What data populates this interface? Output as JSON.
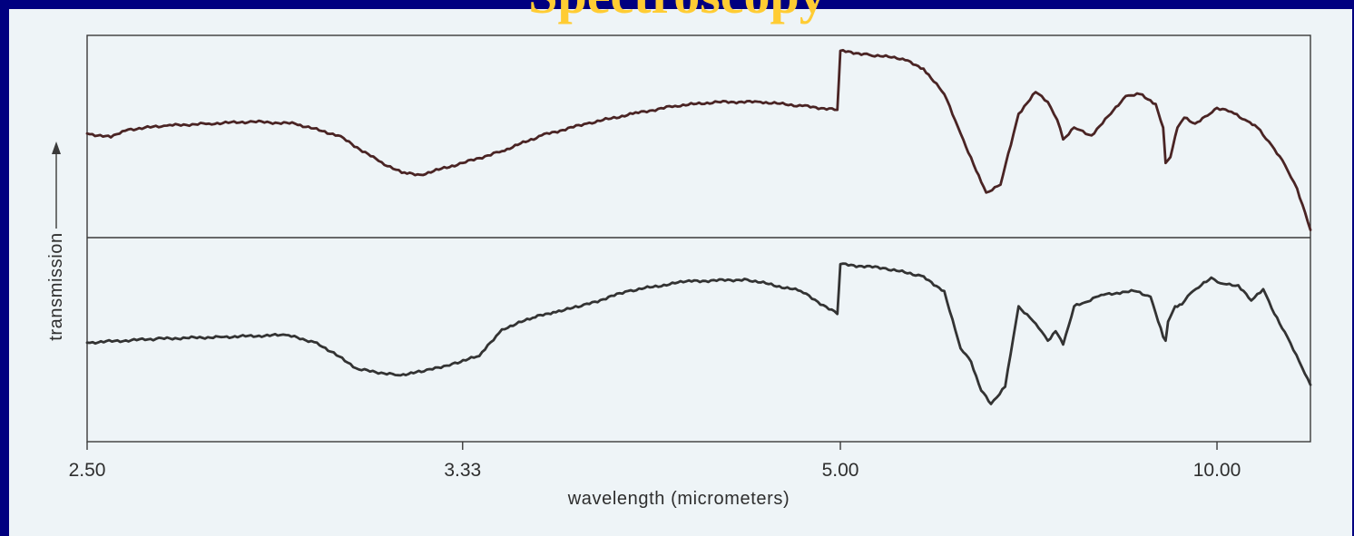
{
  "slide": {
    "title": "Spectroscopy"
  },
  "colors": {
    "slide_background": "#000080",
    "panel_background": "#eef4f7",
    "title_color": "#ffcc33",
    "trace_top": "#4a2424",
    "trace_bottom": "#333333",
    "frame": "#3a3a3a"
  },
  "chart_data": {
    "type": "line",
    "title": "",
    "xlabel": "wavelength (micrometers)",
    "ylabel": "transmission",
    "x_tick_labels": [
      "2.50",
      "3.33",
      "5.00",
      "10.00"
    ],
    "x_ticks": [
      2.5,
      3.33,
      5.0,
      10.0
    ],
    "x_scale": "wavenumber (reciprocal of wavelength)",
    "xlim": [
      2.5,
      13.3
    ],
    "ylim": [
      0,
      1
    ],
    "grid": false,
    "legend": "none",
    "note": "two stacked transmission spectra separated by a horizontal divider; y values are relative transmission (0 = bottom of its panel, 1 = top)",
    "series": [
      {
        "panel": "top",
        "x": [
          2.5,
          2.54,
          2.57,
          2.64,
          2.72,
          2.81,
          2.9,
          3.0,
          3.1,
          3.16,
          3.21,
          3.33,
          3.45,
          3.58,
          3.74,
          3.92,
          4.1,
          4.3,
          4.52,
          4.76,
          4.98,
          5.0,
          5.2,
          5.45,
          5.62,
          5.8,
          5.95,
          6.1,
          6.2,
          6.35,
          6.55,
          6.75,
          6.9,
          7.02,
          7.1,
          7.25,
          7.5,
          7.8,
          8.05,
          8.3,
          8.6,
          8.75,
          8.8,
          8.9,
          9.05,
          9.2,
          9.45,
          9.75,
          10.0,
          10.4,
          10.8,
          11.2,
          11.7,
          12.2,
          12.7,
          13.3
        ],
        "y": [
          0.52,
          0.5,
          0.54,
          0.56,
          0.57,
          0.58,
          0.57,
          0.51,
          0.38,
          0.32,
          0.31,
          0.37,
          0.43,
          0.51,
          0.57,
          0.62,
          0.66,
          0.68,
          0.68,
          0.66,
          0.64,
          0.94,
          0.92,
          0.9,
          0.85,
          0.72,
          0.52,
          0.33,
          0.22,
          0.26,
          0.62,
          0.73,
          0.68,
          0.59,
          0.49,
          0.55,
          0.51,
          0.62,
          0.71,
          0.72,
          0.67,
          0.55,
          0.37,
          0.4,
          0.55,
          0.6,
          0.57,
          0.61,
          0.65,
          0.63,
          0.59,
          0.55,
          0.46,
          0.36,
          0.24,
          0.03
        ]
      },
      {
        "panel": "bottom",
        "x": [
          2.5,
          2.62,
          2.75,
          2.88,
          2.95,
          3.05,
          3.15,
          3.22,
          3.3,
          3.38,
          3.45,
          3.55,
          3.62,
          3.72,
          3.9,
          4.15,
          4.45,
          4.75,
          4.98,
          5.0,
          5.3,
          5.6,
          5.8,
          5.95,
          6.05,
          6.15,
          6.25,
          6.4,
          6.55,
          6.75,
          6.9,
          7.0,
          7.1,
          7.25,
          7.4,
          7.65,
          7.9,
          8.2,
          8.5,
          8.75,
          8.8,
          8.85,
          9.0,
          9.15,
          9.35,
          9.6,
          9.85,
          10.1,
          10.6,
          11.0,
          11.4,
          11.8,
          12.3,
          12.8,
          13.3
        ],
        "y": [
          0.47,
          0.49,
          0.5,
          0.51,
          0.47,
          0.33,
          0.3,
          0.32,
          0.36,
          0.4,
          0.54,
          0.6,
          0.63,
          0.66,
          0.74,
          0.79,
          0.8,
          0.74,
          0.62,
          0.88,
          0.86,
          0.82,
          0.74,
          0.44,
          0.37,
          0.22,
          0.15,
          0.24,
          0.66,
          0.57,
          0.48,
          0.53,
          0.46,
          0.66,
          0.68,
          0.72,
          0.73,
          0.74,
          0.71,
          0.5,
          0.48,
          0.58,
          0.66,
          0.67,
          0.73,
          0.77,
          0.81,
          0.78,
          0.77,
          0.69,
          0.75,
          0.62,
          0.5,
          0.37,
          0.25
        ]
      }
    ]
  }
}
